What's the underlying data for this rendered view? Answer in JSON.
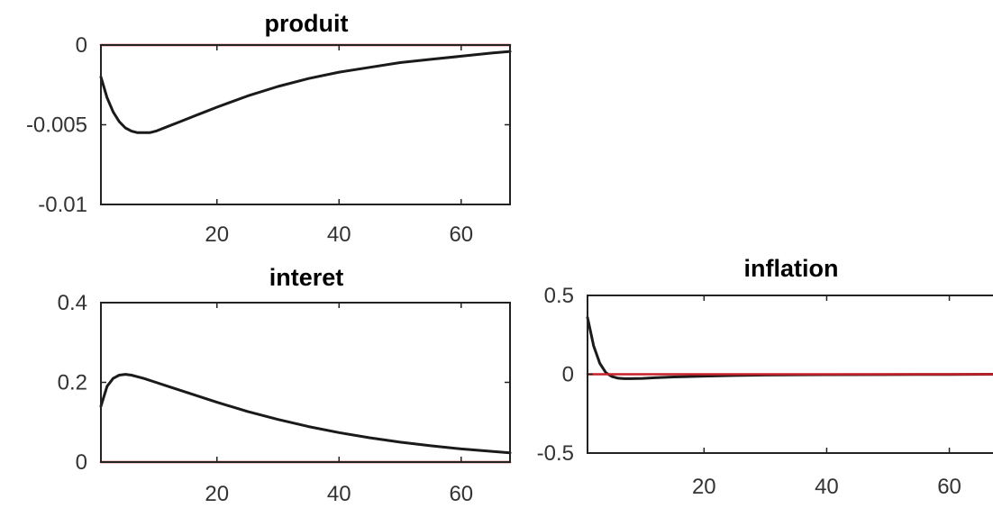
{
  "colors": {
    "response": "#1a1a1a",
    "steady_state": "#c8202a"
  },
  "chart_data": [
    {
      "type": "line",
      "title": "produit",
      "xlim": [
        1,
        68
      ],
      "ylim": [
        -0.01,
        0
      ],
      "xticks": [
        20,
        40,
        60
      ],
      "yticks": [
        0,
        -0.005,
        -0.01
      ],
      "ytick_labels": [
        "0",
        "-0.005",
        "-0.01"
      ],
      "series": [
        {
          "x": [
            1,
            2,
            3,
            4,
            5,
            6,
            7,
            8,
            9,
            10,
            12,
            14,
            16,
            18,
            20,
            25,
            30,
            35,
            40,
            45,
            50,
            55,
            60,
            65,
            68
          ],
          "values": [
            -0.002,
            -0.0033,
            -0.0042,
            -0.0048,
            -0.0052,
            -0.0054,
            -0.0055,
            -0.0055,
            -0.0055,
            -0.0054,
            -0.0051,
            -0.0048,
            -0.0045,
            -0.0042,
            -0.0039,
            -0.0032,
            -0.0026,
            -0.0021,
            -0.0017,
            -0.0014,
            -0.0011,
            -0.0009,
            -0.0007,
            -0.0005,
            -0.0004
          ]
        },
        {
          "x": [
            1,
            68
          ],
          "values": [
            0,
            0
          ]
        }
      ]
    },
    {
      "type": "line",
      "title": "interet",
      "xlim": [
        1,
        68
      ],
      "ylim": [
        0,
        0.4
      ],
      "xticks": [
        20,
        40,
        60
      ],
      "yticks": [
        0,
        0.2,
        0.4
      ],
      "ytick_labels": [
        "0",
        "0.2",
        "0.4"
      ],
      "series": [
        {
          "x": [
            1,
            2,
            3,
            4,
            5,
            6,
            7,
            8,
            10,
            12,
            15,
            20,
            25,
            30,
            35,
            40,
            45,
            50,
            55,
            60,
            65,
            68
          ],
          "values": [
            0.14,
            0.19,
            0.21,
            0.218,
            0.22,
            0.218,
            0.214,
            0.21,
            0.2,
            0.19,
            0.175,
            0.15,
            0.127,
            0.107,
            0.089,
            0.074,
            0.061,
            0.05,
            0.041,
            0.033,
            0.027,
            0.023
          ]
        },
        {
          "x": [
            1,
            68
          ],
          "values": [
            0,
            0
          ]
        }
      ]
    },
    {
      "type": "line",
      "title": "inflation",
      "xlim": [
        1,
        68
      ],
      "ylim": [
        -0.5,
        0.5
      ],
      "xticks": [
        20,
        40,
        60
      ],
      "yticks": [
        0.5,
        0,
        -0.5
      ],
      "ytick_labels": [
        "0.5",
        "0",
        "-0.5"
      ],
      "series": [
        {
          "x": [
            1,
            2,
            3,
            4,
            5,
            6,
            7,
            8,
            10,
            12,
            15,
            20,
            25,
            30,
            40,
            50,
            60,
            68
          ],
          "values": [
            0.36,
            0.18,
            0.07,
            0.01,
            -0.015,
            -0.025,
            -0.028,
            -0.028,
            -0.026,
            -0.022,
            -0.017,
            -0.012,
            -0.008,
            -0.005,
            -0.003,
            -0.002,
            -0.001,
            0
          ]
        },
        {
          "x": [
            1,
            68
          ],
          "values": [
            0,
            0
          ]
        }
      ]
    }
  ]
}
